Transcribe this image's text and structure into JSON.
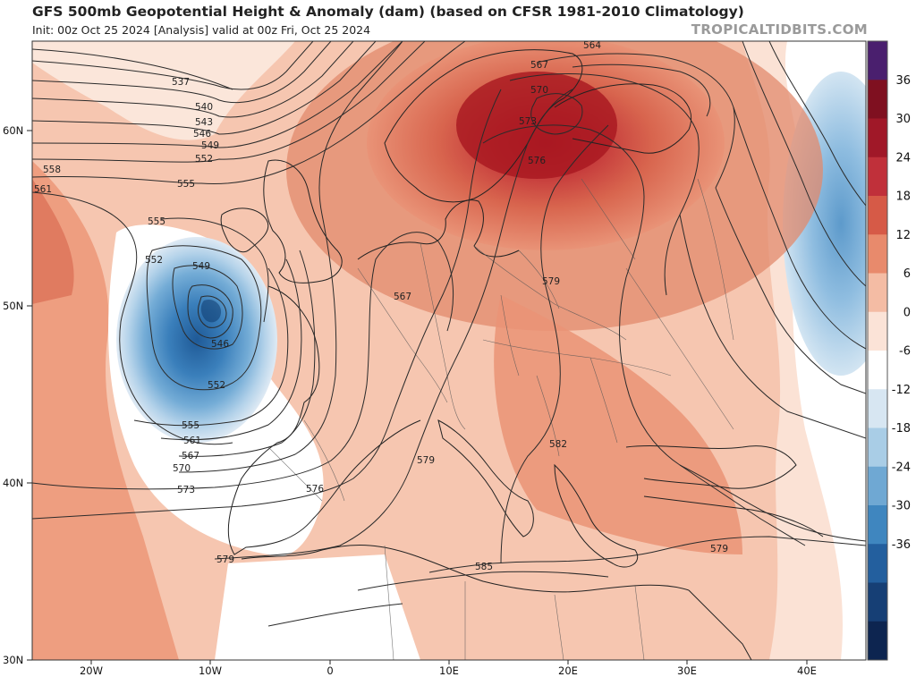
{
  "header": {
    "title": "GFS 500mb Geopotential Height & Anomaly (dam) (based on CFSR 1981-2010 Climatology)",
    "subtitle": "Init: 00z Oct 25 2024   [Analysis]   valid at 00z Fri, Oct 25 2024",
    "brand": "TROPICALTIDBITS.COM"
  },
  "map": {
    "region": "Europe / North Atlantic",
    "lon_range": [
      -25,
      45
    ],
    "lat_range": [
      30,
      65
    ],
    "lat_ticks": [
      "60N",
      "50N",
      "40N",
      "30N"
    ],
    "lon_ticks": [
      "20W",
      "10W",
      "0",
      "10E",
      "20E",
      "30E",
      "40E"
    ],
    "contour_labels": [
      "537",
      "540",
      "543",
      "546",
      "549",
      "552",
      "555",
      "558",
      "561",
      "555",
      "552",
      "549",
      "546",
      "552",
      "555",
      "561",
      "567",
      "570",
      "573",
      "576",
      "579",
      "564",
      "567",
      "570",
      "573",
      "576",
      "579",
      "567",
      "582",
      "579",
      "585",
      "579"
    ],
    "features": {
      "cutoff_low": {
        "name": "cutoff-low",
        "center_lon": -10,
        "center_lat": 50
      },
      "ridge": {
        "name": "scandinavian-ridge",
        "center_lon": 18,
        "center_lat": 60
      }
    }
  },
  "colorbar": {
    "labels": [
      "36",
      "30",
      "24",
      "18",
      "12",
      "6",
      "0",
      "-6",
      "-12",
      "-18",
      "-24",
      "-30",
      "-36"
    ],
    "colors": [
      "#4a1f6e",
      "#7f1020",
      "#a01828",
      "#c0303a",
      "#d65a47",
      "#e88a6c",
      "#f4bca4",
      "#fbe3d7",
      "#ffffff",
      "#d7e6f2",
      "#a9cde6",
      "#6fa8d3",
      "#3f86bf",
      "#235f9e",
      "#163f75",
      "#0d2550"
    ]
  }
}
